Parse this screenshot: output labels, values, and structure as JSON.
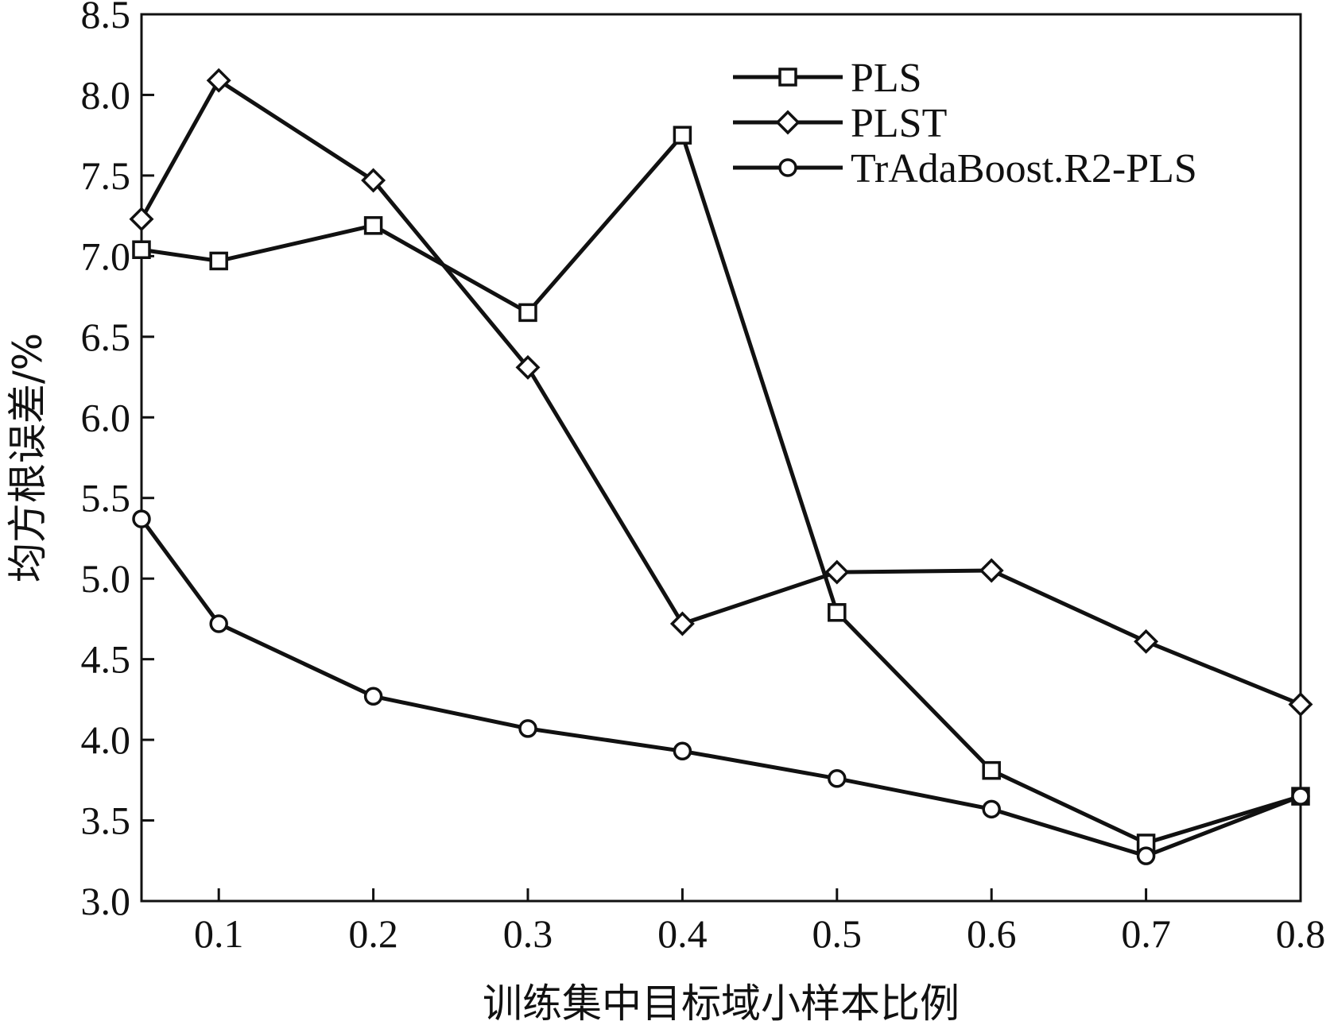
{
  "chart_data": {
    "type": "line",
    "xlabel": "训练集中目标域小样本比例",
    "ylabel": "均方根误差/%",
    "xlim": [
      0.05,
      0.8
    ],
    "ylim": [
      3.0,
      8.5
    ],
    "xticks": [
      "0.1",
      "0.2",
      "0.3",
      "0.4",
      "0.5",
      "0.6",
      "0.7",
      "0.8"
    ],
    "yticks": [
      "3.0",
      "3.5",
      "4.0",
      "4.5",
      "5.0",
      "5.5",
      "6.0",
      "6.5",
      "7.0",
      "7.5",
      "8.0",
      "8.5"
    ],
    "grid": false,
    "legend_position": "top-right",
    "x": [
      0.05,
      0.1,
      0.2,
      0.3,
      0.4,
      0.5,
      0.6,
      0.7,
      0.8
    ],
    "series": [
      {
        "name": "PLS",
        "marker": "square",
        "values": [
          7.04,
          6.97,
          7.19,
          6.65,
          7.75,
          4.79,
          3.81,
          3.36,
          3.65
        ]
      },
      {
        "name": "PLST",
        "marker": "diamond",
        "values": [
          7.23,
          8.09,
          7.47,
          6.31,
          4.72,
          5.04,
          5.05,
          4.61,
          4.22
        ]
      },
      {
        "name": "TrAdaBoost.R2-PLS",
        "marker": "circle",
        "values": [
          5.37,
          4.72,
          4.27,
          4.07,
          3.93,
          3.76,
          3.57,
          3.28,
          3.65
        ]
      }
    ],
    "colors": {
      "line": "#111111",
      "marker_fill": "#ffffff"
    }
  }
}
